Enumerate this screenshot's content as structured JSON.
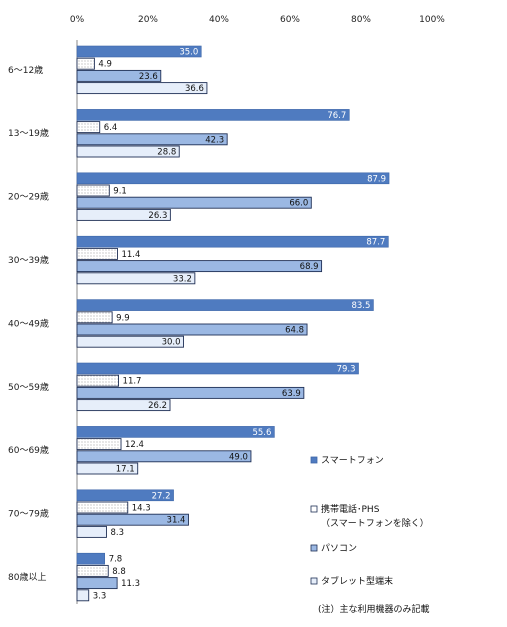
{
  "chart_data": {
    "type": "bar",
    "orientation": "horizontal",
    "categories": [
      "6～12歳",
      "13～19歳",
      "20～29歳",
      "30～39歳",
      "40～49歳",
      "50～59歳",
      "60～69歳",
      "70～79歳",
      "80歳以上"
    ],
    "series": [
      {
        "name": "スマートフォン",
        "color": "#4f7bc0",
        "values": [
          35.0,
          76.7,
          87.9,
          87.7,
          83.5,
          79.3,
          55.6,
          27.2,
          7.8
        ]
      },
      {
        "name": "携帯電話･PHS",
        "name_line2": "（スマートフォンを除く）",
        "color": "#ffffff",
        "values": [
          4.9,
          6.4,
          9.1,
          11.4,
          9.9,
          11.7,
          12.4,
          14.3,
          8.8
        ]
      },
      {
        "name": "パソコン",
        "color": "#9bb8e3",
        "values": [
          23.6,
          42.3,
          66.0,
          68.9,
          64.8,
          63.9,
          49.0,
          31.4,
          11.3
        ]
      },
      {
        "name": "タブレット型端末",
        "color": "#e6eefa",
        "values": [
          36.6,
          28.8,
          26.3,
          33.2,
          30.0,
          26.2,
          17.1,
          8.3,
          3.3
        ]
      }
    ],
    "xlim": [
      0,
      100
    ],
    "xticks": [
      "0%",
      "20%",
      "40%",
      "60%",
      "80%",
      "100%"
    ],
    "grid": false,
    "legend_position": "bottom-right",
    "note": "(注）主な利用機器のみ記載"
  }
}
